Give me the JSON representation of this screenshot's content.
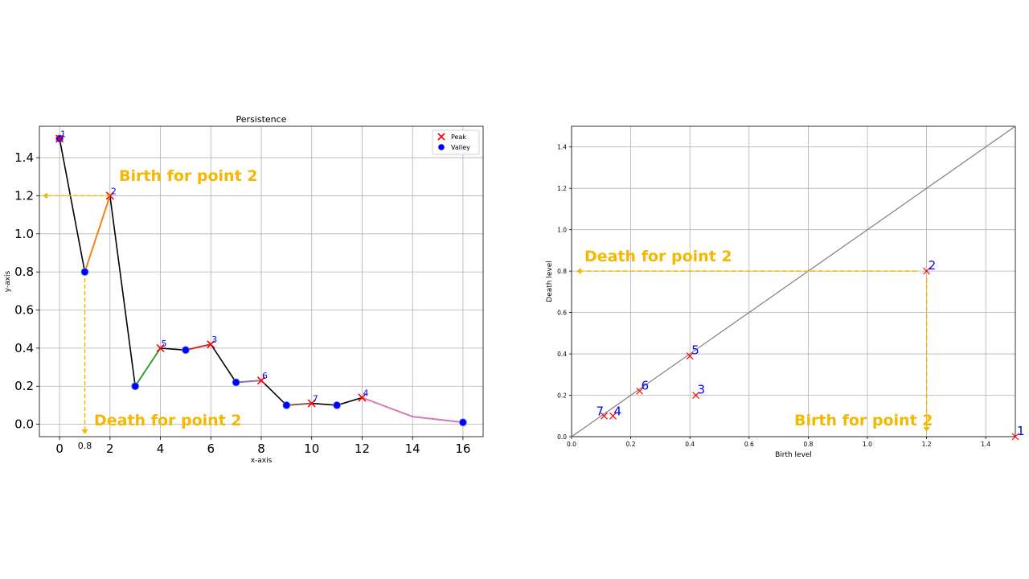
{
  "chart_data": [
    {
      "type": "line",
      "title": "Persistence",
      "xlabel": "x-axis",
      "ylabel": "y-axis",
      "xlim": [
        -0.8,
        16.8
      ],
      "ylim": [
        -0.065,
        1.565
      ],
      "xticks": [
        0,
        2,
        4,
        6,
        8,
        10,
        12,
        14,
        16
      ],
      "yticks": [
        0.0,
        0.2,
        0.4,
        0.6,
        0.8,
        1.0,
        1.2,
        1.4
      ],
      "grid": true,
      "legend": {
        "placement": "top-right",
        "entries": [
          "Peak",
          "Valley"
        ]
      },
      "series": [
        {
          "x": [
            0,
            1,
            2,
            3,
            4,
            5,
            6,
            7,
            8,
            9,
            10,
            11,
            12,
            14,
            16
          ],
          "y": [
            1.5,
            0.8,
            1.2,
            0.2,
            0.4,
            0.39,
            0.42,
            0.22,
            0.23,
            0.1,
            0.11,
            0.1,
            0.14,
            0.04,
            0.01
          ]
        }
      ],
      "segments": [
        {
          "from": [
            1,
            0.8
          ],
          "to": [
            2,
            1.2
          ],
          "color": "#ff7f0e"
        },
        {
          "from": [
            3,
            0.2
          ],
          "to": [
            4,
            0.4
          ],
          "color": "#2ca02c"
        },
        {
          "from": [
            5,
            0.39
          ],
          "to": [
            6,
            0.42
          ],
          "color": "#d62728"
        },
        {
          "from": [
            7,
            0.22
          ],
          "to": [
            8,
            0.23
          ],
          "color": "#9467bd"
        },
        {
          "from": [
            9,
            0.1
          ],
          "to": [
            10,
            0.11
          ],
          "color": "#8c564b"
        },
        {
          "from": [
            12,
            0.14
          ],
          "to": [
            14,
            0.04
          ],
          "color": "#e377c2"
        },
        {
          "from": [
            14,
            0.04
          ],
          "to": [
            16,
            0.01
          ],
          "color": "#e377c2"
        }
      ],
      "peaks": [
        {
          "x": 0,
          "y": 1.5,
          "label": "1"
        },
        {
          "x": 2,
          "y": 1.2,
          "label": "2"
        },
        {
          "x": 4,
          "y": 0.4,
          "label": "5"
        },
        {
          "x": 6,
          "y": 0.42,
          "label": "3"
        },
        {
          "x": 8,
          "y": 0.23,
          "label": "6"
        },
        {
          "x": 10,
          "y": 0.11,
          "label": "7"
        },
        {
          "x": 12,
          "y": 0.14,
          "label": "4"
        }
      ],
      "valleys": [
        {
          "x": 0,
          "y": 1.5
        },
        {
          "x": 1,
          "y": 0.8
        },
        {
          "x": 3,
          "y": 0.2
        },
        {
          "x": 5,
          "y": 0.39
        },
        {
          "x": 7,
          "y": 0.22
        },
        {
          "x": 9,
          "y": 0.1
        },
        {
          "x": 11,
          "y": 0.1
        },
        {
          "x": 16,
          "y": 0.01
        }
      ],
      "extra_tick_label": "0.8",
      "annotations": [
        {
          "text": "Birth for point 2",
          "arrow_to": "y=1.2"
        },
        {
          "text": "Death for point 2",
          "arrow_to": "x=1"
        }
      ]
    },
    {
      "type": "scatter",
      "title": "",
      "xlabel": "Birth level",
      "ylabel": "Death level",
      "xlim": [
        0,
        1.5
      ],
      "ylim": [
        0,
        1.5
      ],
      "xticks": [
        0.0,
        0.2,
        0.4,
        0.6,
        0.8,
        1.0,
        1.2,
        1.4
      ],
      "yticks": [
        0.0,
        0.2,
        0.4,
        0.6,
        0.8,
        1.0,
        1.2,
        1.4
      ],
      "grid": true,
      "diagonal": true,
      "points": [
        {
          "x": 1.5,
          "y": 0.0,
          "label": "1"
        },
        {
          "x": 1.2,
          "y": 0.8,
          "label": "2"
        },
        {
          "x": 0.42,
          "y": 0.2,
          "label": "3"
        },
        {
          "x": 0.14,
          "y": 0.1,
          "label": "4"
        },
        {
          "x": 0.4,
          "y": 0.39,
          "label": "5"
        },
        {
          "x": 0.23,
          "y": 0.22,
          "label": "6"
        },
        {
          "x": 0.11,
          "y": 0.1,
          "label": "7"
        }
      ],
      "annotations": [
        {
          "text": "Death for point 2",
          "arrow_to": "y=0.8"
        },
        {
          "text": "Birth for point 2",
          "arrow_to": "x=1.2"
        }
      ]
    }
  ],
  "colors": {
    "peak": "#ff0000",
    "valley": "#0000ff",
    "main_line": "#000000",
    "annotation": "#f5b800",
    "label": "#0000ff",
    "grid": "#b0b0b0",
    "diagonal": "#808080"
  }
}
